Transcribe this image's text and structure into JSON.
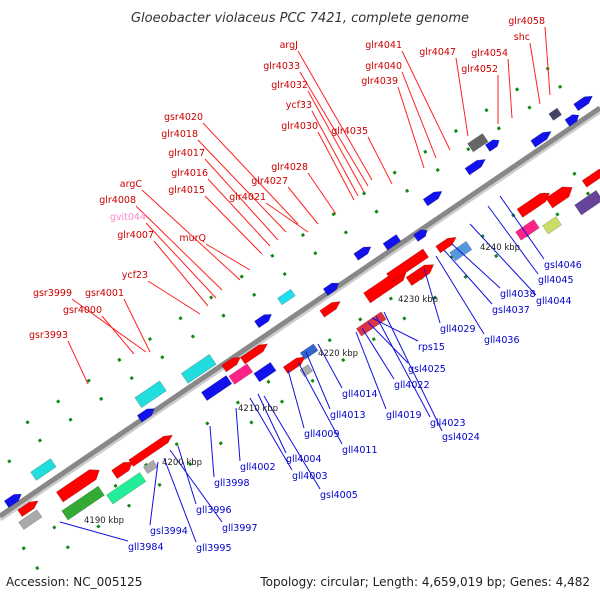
{
  "title": "Gloeobacter violaceus PCC 7421, complete genome",
  "footer": {
    "accession": "Accession: NC_005125",
    "summary": "Topology: circular; Length: 4,659,019 bp; Genes: 4,482"
  },
  "colors": {
    "forward_label": "#cc0000",
    "reverse_label": "#0000cc",
    "pseudo_label": "#ff88cc",
    "leader_line_forward": "#ff2222",
    "leader_line_reverse": "#1111dd",
    "backbone": "#888888"
  },
  "kbp_ticks": [
    "4190 kbp",
    "4200 kbp",
    "4210 kbp",
    "4220 kbp",
    "4230 kbp",
    "4240 kbp"
  ],
  "top_labels": [
    "glr4058",
    "shc",
    "glr4054",
    "glr4052",
    "glr4047",
    "glr4041",
    "glr4040",
    "glr4039",
    "argJ",
    "glr4033",
    "glr4032",
    "ycf33",
    "glr4030",
    "glr4035",
    "gsr4020",
    "glr4018",
    "glr4017",
    "glr4016",
    "glr4015",
    "glr4028",
    "glr4027",
    "glr4021",
    "argC",
    "glr4008",
    "gvit044",
    "glr4007",
    "murQ",
    "ycf23",
    "gsr3999",
    "gsr4001",
    "gsr4000",
    "gsr3993"
  ],
  "bottom_labels": [
    "gsl4046",
    "gll4045",
    "gll4044",
    "gll4038",
    "gsl4037",
    "gll4036",
    "gll4029",
    "rps15",
    "gsl4025",
    "gll4022",
    "gll4019",
    "gll4023",
    "gsl4024",
    "gll4014",
    "gll4013",
    "gll4011",
    "gll4009",
    "gll4004",
    "gll4003",
    "gsl4005",
    "gll4002",
    "gll3998",
    "gll3996",
    "gll3997",
    "gll3984",
    "gsl3994",
    "gll3995"
  ]
}
